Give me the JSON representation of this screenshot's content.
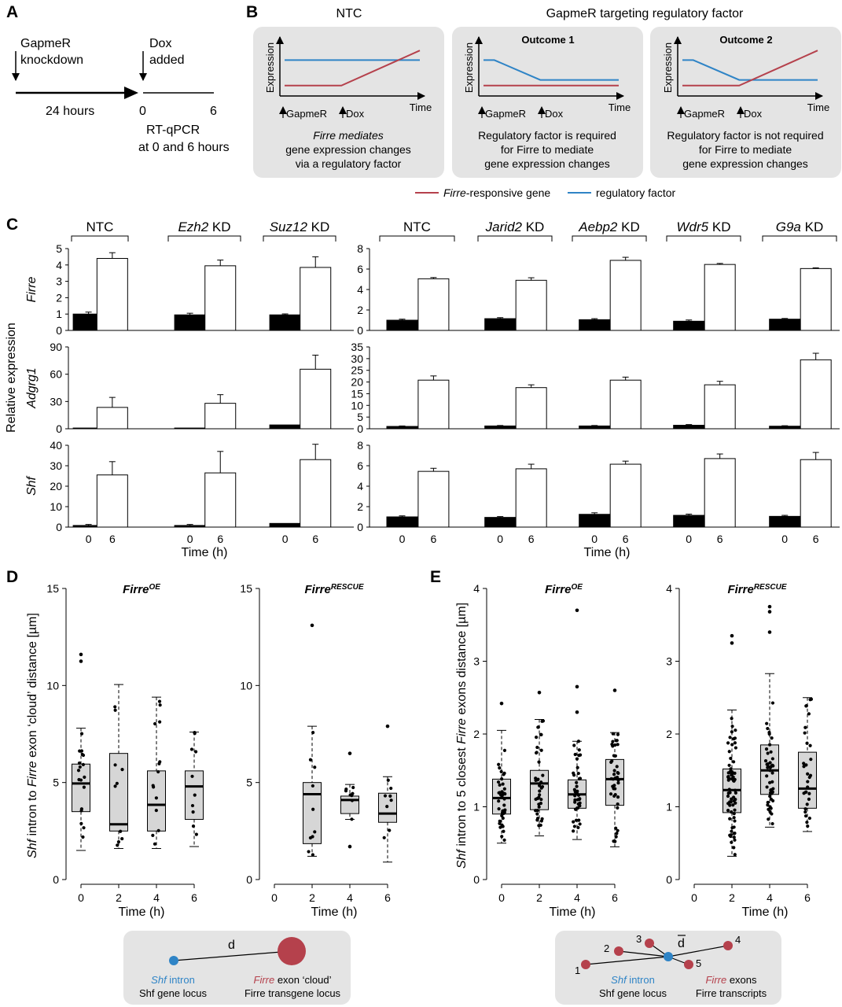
{
  "panel_labels": {
    "A": "A",
    "B": "B",
    "C": "C",
    "D": "D",
    "E": "E"
  },
  "panelA": {
    "gapmer_line1": "GapmeR",
    "gapmer_line2": "knockdown",
    "dox_line1": "Dox",
    "dox_line2": "added",
    "hours24": "24 hours",
    "tick0": "0",
    "tick6": "6",
    "rtqpcr_line1": "RT-qPCR",
    "rtqpcr_line2": "at 0 and 6 hours"
  },
  "panelB": {
    "ntc_title": "NTC",
    "gapmer_title": "GapmeR targeting regulatory factor",
    "outcome1": "Outcome 1",
    "outcome2": "Outcome 2",
    "ylabel": "Expression",
    "xlabel": "Time",
    "gapmer_mark": "GapmeR",
    "dox_mark": "Dox",
    "ntc_caption": [
      "Firre mediates",
      "gene expression changes",
      "via a regulatory factor"
    ],
    "o1_caption": [
      "Regulatory factor is required",
      "for Firre to mediate",
      "gene expression changes"
    ],
    "o2_caption": [
      "Regulatory factor is not required",
      "for Firre to mediate",
      "gene expression changes"
    ],
    "legend_gene_italic": "Firre",
    "legend_gene_rest": "-responsive gene",
    "legend_factor": "regulatory factor",
    "color_gene": "#b5414c",
    "color_factor": "#2f84c6"
  },
  "panelC": {
    "ylabel": "Relative expression",
    "xlabel": "Time (h)",
    "left_groups": [
      "NTC",
      "Ezh2 KD",
      "Suz12 KD"
    ],
    "right_groups": [
      "NTC",
      "Jarid2 KD",
      "Aebp2 KD",
      "Wdr5 KD",
      "G9a KD"
    ],
    "genes": [
      "Firre",
      "Adgrg1",
      "Shf"
    ],
    "time_ticks": [
      "0",
      "6"
    ]
  },
  "chart_data": [
    {
      "type": "bar",
      "title": "Firre",
      "panel": "C-left",
      "categories": [
        "NTC",
        "Ezh2 KD",
        "Suz12 KD"
      ],
      "series": [
        {
          "name": "0 h",
          "values": [
            1.0,
            0.95,
            0.95
          ],
          "errors": [
            0.12,
            0.1,
            0.06
          ]
        },
        {
          "name": "6 h",
          "values": [
            4.4,
            3.95,
            3.85
          ],
          "errors": [
            0.35,
            0.35,
            0.65
          ]
        }
      ],
      "ylim": [
        0,
        5
      ],
      "yticks": [
        0,
        1,
        2,
        3,
        4,
        5
      ]
    },
    {
      "type": "bar",
      "title": "Firre",
      "panel": "C-right",
      "categories": [
        "NTC",
        "Jarid2 KD",
        "Aebp2 KD",
        "Wdr5 KD",
        "G9a KD"
      ],
      "series": [
        {
          "name": "0 h",
          "values": [
            1.0,
            1.15,
            1.05,
            0.9,
            1.1
          ],
          "errors": [
            0.1,
            0.1,
            0.1,
            0.12,
            0.07
          ]
        },
        {
          "name": "6 h",
          "values": [
            5.05,
            4.9,
            6.85,
            6.45,
            6.05
          ],
          "errors": [
            0.12,
            0.25,
            0.3,
            0.1,
            0.07
          ]
        }
      ],
      "ylim": [
        0,
        8
      ],
      "yticks": [
        0,
        2,
        4,
        6,
        8
      ]
    },
    {
      "type": "bar",
      "title": "Adgrg1",
      "panel": "C-left",
      "categories": [
        "NTC",
        "Ezh2 KD",
        "Suz12 KD"
      ],
      "series": [
        {
          "name": "0 h",
          "values": [
            0.8,
            0.8,
            4.2
          ],
          "errors": [
            0,
            0,
            0
          ]
        },
        {
          "name": "6 h",
          "values": [
            23.5,
            28,
            65.5
          ],
          "errors": [
            11,
            9.5,
            15.5
          ]
        }
      ],
      "ylim": [
        0,
        90
      ],
      "yticks": [
        0,
        30,
        60,
        90
      ]
    },
    {
      "type": "bar",
      "title": "Adgrg1",
      "panel": "C-right",
      "categories": [
        "NTC",
        "Jarid2 KD",
        "Aebp2 KD",
        "Wdr5 KD",
        "G9a KD"
      ],
      "series": [
        {
          "name": "0 h",
          "values": [
            1.0,
            1.2,
            1.2,
            1.5,
            1.1
          ],
          "errors": [
            0.2,
            0.2,
            0.2,
            0.3,
            0.2
          ]
        },
        {
          "name": "6 h",
          "values": [
            20.8,
            17.6,
            20.8,
            18.8,
            29.5
          ],
          "errors": [
            1.8,
            1.2,
            1.3,
            1.5,
            2.8
          ]
        }
      ],
      "ylim": [
        0,
        35
      ],
      "yticks": [
        0,
        5,
        10,
        15,
        20,
        25,
        30,
        35
      ]
    },
    {
      "type": "bar",
      "title": "Shf",
      "panel": "C-left",
      "categories": [
        "NTC",
        "Ezh2 KD",
        "Suz12 KD"
      ],
      "series": [
        {
          "name": "0 h",
          "values": [
            0.8,
            0.8,
            1.8
          ],
          "errors": [
            0.5,
            0.5,
            0
          ]
        },
        {
          "name": "6 h",
          "values": [
            25.5,
            26.5,
            33
          ],
          "errors": [
            6.5,
            10.5,
            7.5
          ]
        }
      ],
      "ylim": [
        0,
        40
      ],
      "yticks": [
        0,
        10,
        20,
        30,
        40
      ]
    },
    {
      "type": "bar",
      "title": "Shf",
      "panel": "C-right",
      "categories": [
        "NTC",
        "Jarid2 KD",
        "Aebp2 KD",
        "Wdr5 KD",
        "G9a KD"
      ],
      "series": [
        {
          "name": "0 h",
          "values": [
            1.0,
            0.95,
            1.25,
            1.15,
            1.05
          ],
          "errors": [
            0.1,
            0.08,
            0.15,
            0.12,
            0.1
          ]
        },
        {
          "name": "6 h",
          "values": [
            5.45,
            5.7,
            6.15,
            6.7,
            6.6
          ],
          "errors": [
            0.3,
            0.45,
            0.3,
            0.45,
            0.7
          ]
        }
      ],
      "ylim": [
        0,
        8
      ],
      "yticks": [
        0,
        2,
        4,
        6,
        8
      ]
    },
    {
      "type": "box",
      "title": "FirreOE",
      "panel": "D",
      "ylabel": "Shf intron to Firre exon 'cloud' distance [µm]",
      "xlabel": "Time (h)",
      "categories": [
        "0",
        "2",
        "4",
        "6"
      ],
      "boxes": [
        {
          "min": 1.5,
          "q1": 3.5,
          "median": 4.95,
          "q3": 5.95,
          "max": 7.8,
          "outliers": [
            11.6,
            11.25
          ]
        },
        {
          "min": 1.6,
          "q1": 2.5,
          "median": 2.85,
          "q3": 6.5,
          "max": 10.05,
          "outliers": []
        },
        {
          "min": 1.6,
          "q1": 2.5,
          "median": 3.85,
          "q3": 5.6,
          "max": 9.4,
          "outliers": []
        },
        {
          "min": 1.7,
          "q1": 3.1,
          "median": 4.8,
          "q3": 5.6,
          "max": 7.6,
          "outliers": []
        }
      ],
      "ylim": [
        0,
        15
      ],
      "yticks": [
        0,
        5,
        10,
        15
      ]
    },
    {
      "type": "box",
      "title": "FirreRESCUE",
      "panel": "D",
      "xlabel": "Time (h)",
      "categories": [
        "0",
        "2",
        "4",
        "6"
      ],
      "boxes": [
        null,
        {
          "min": 1.2,
          "q1": 1.85,
          "median": 4.4,
          "q3": 5.0,
          "max": 7.9,
          "outliers": [
            13.1
          ]
        },
        {
          "min": 3.1,
          "q1": 3.4,
          "median": 4.1,
          "q3": 4.3,
          "max": 4.9,
          "outliers": [
            6.5,
            1.7
          ]
        },
        {
          "min": 0.9,
          "q1": 2.95,
          "median": 3.4,
          "q3": 4.45,
          "max": 5.3,
          "outliers": [
            7.9
          ]
        }
      ],
      "ylim": [
        0,
        15
      ],
      "yticks": [
        0,
        5,
        10,
        15
      ]
    },
    {
      "type": "box",
      "title": "FirreOE",
      "panel": "E",
      "ylabel": "Shf intron to 5 closest Firre exons distance [µm]",
      "xlabel": "Time (h)",
      "categories": [
        "0",
        "2",
        "4",
        "6"
      ],
      "boxes": [
        {
          "min": 0.5,
          "q1": 0.9,
          "median": 1.12,
          "q3": 1.38,
          "max": 2.05,
          "outliers": [
            2.42
          ]
        },
        {
          "min": 0.6,
          "q1": 0.96,
          "median": 1.32,
          "q3": 1.5,
          "max": 2.2,
          "outliers": [
            2.57
          ]
        },
        {
          "min": 0.55,
          "q1": 0.98,
          "median": 1.17,
          "q3": 1.37,
          "max": 1.9,
          "outliers": [
            3.7,
            2.65,
            2.3
          ]
        },
        {
          "min": 0.45,
          "q1": 1.02,
          "median": 1.38,
          "q3": 1.65,
          "max": 2.02,
          "outliers": [
            2.6
          ]
        }
      ],
      "ylim": [
        0,
        4
      ],
      "yticks": [
        0,
        1,
        2,
        3,
        4
      ]
    },
    {
      "type": "box",
      "title": "FirreRESCUE",
      "panel": "E",
      "xlabel": "Time (h)",
      "categories": [
        "0",
        "2",
        "4",
        "6"
      ],
      "boxes": [
        null,
        {
          "min": 0.32,
          "q1": 0.92,
          "median": 1.23,
          "q3": 1.52,
          "max": 2.33,
          "outliers": [
            3.35,
            3.25
          ]
        },
        {
          "min": 0.72,
          "q1": 1.17,
          "median": 1.5,
          "q3": 1.85,
          "max": 2.83,
          "outliers": [
            3.75,
            3.68,
            3.4
          ]
        },
        {
          "min": 0.66,
          "q1": 0.98,
          "median": 1.25,
          "q3": 1.75,
          "max": 2.5,
          "outliers": []
        }
      ],
      "ylim": [
        0,
        4
      ],
      "yticks": [
        0,
        1,
        2,
        3,
        4
      ]
    }
  ],
  "panelD": {
    "title_oe_base": "Firre",
    "title_oe_sup": "OE",
    "title_rescue_base": "Firre",
    "title_rescue_sup": "RESCUE",
    "ylabel_italic1": "Shf",
    "ylabel_mid": " intron to ",
    "ylabel_italic2": "Firre",
    "ylabel_rest": " exon ‘cloud’ distance [µm]",
    "xlabel": "Time (h)",
    "schema_d": "d",
    "schema_intron_italic": "Shf",
    "schema_intron_rest": " intron",
    "schema_locus": "Shf gene locus",
    "schema_exon_italic": "Firre",
    "schema_exon_rest": " exon ‘cloud’",
    "schema_tlocus": "Firre transgene locus"
  },
  "panelE": {
    "title_oe_base": "Firre",
    "title_oe_sup": "OE",
    "title_rescue_base": "Firre",
    "title_rescue_sup": "RESCUE",
    "ylabel_italic1": "Shf",
    "ylabel_mid": " intron to 5 closest ",
    "ylabel_italic2": "Firre",
    "ylabel_rest": " exons distance [µm]",
    "xlabel": "Time (h)",
    "schema_dbar": "d",
    "schema_nums": [
      "1",
      "2",
      "3",
      "4",
      "5"
    ],
    "schema_intron_italic": "Shf",
    "schema_intron_rest": " intron",
    "schema_locus": "Shf gene locus",
    "schema_exon_italic": "Firre",
    "schema_exon_rest": " exons",
    "schema_transcripts": "Firre transcripts"
  }
}
